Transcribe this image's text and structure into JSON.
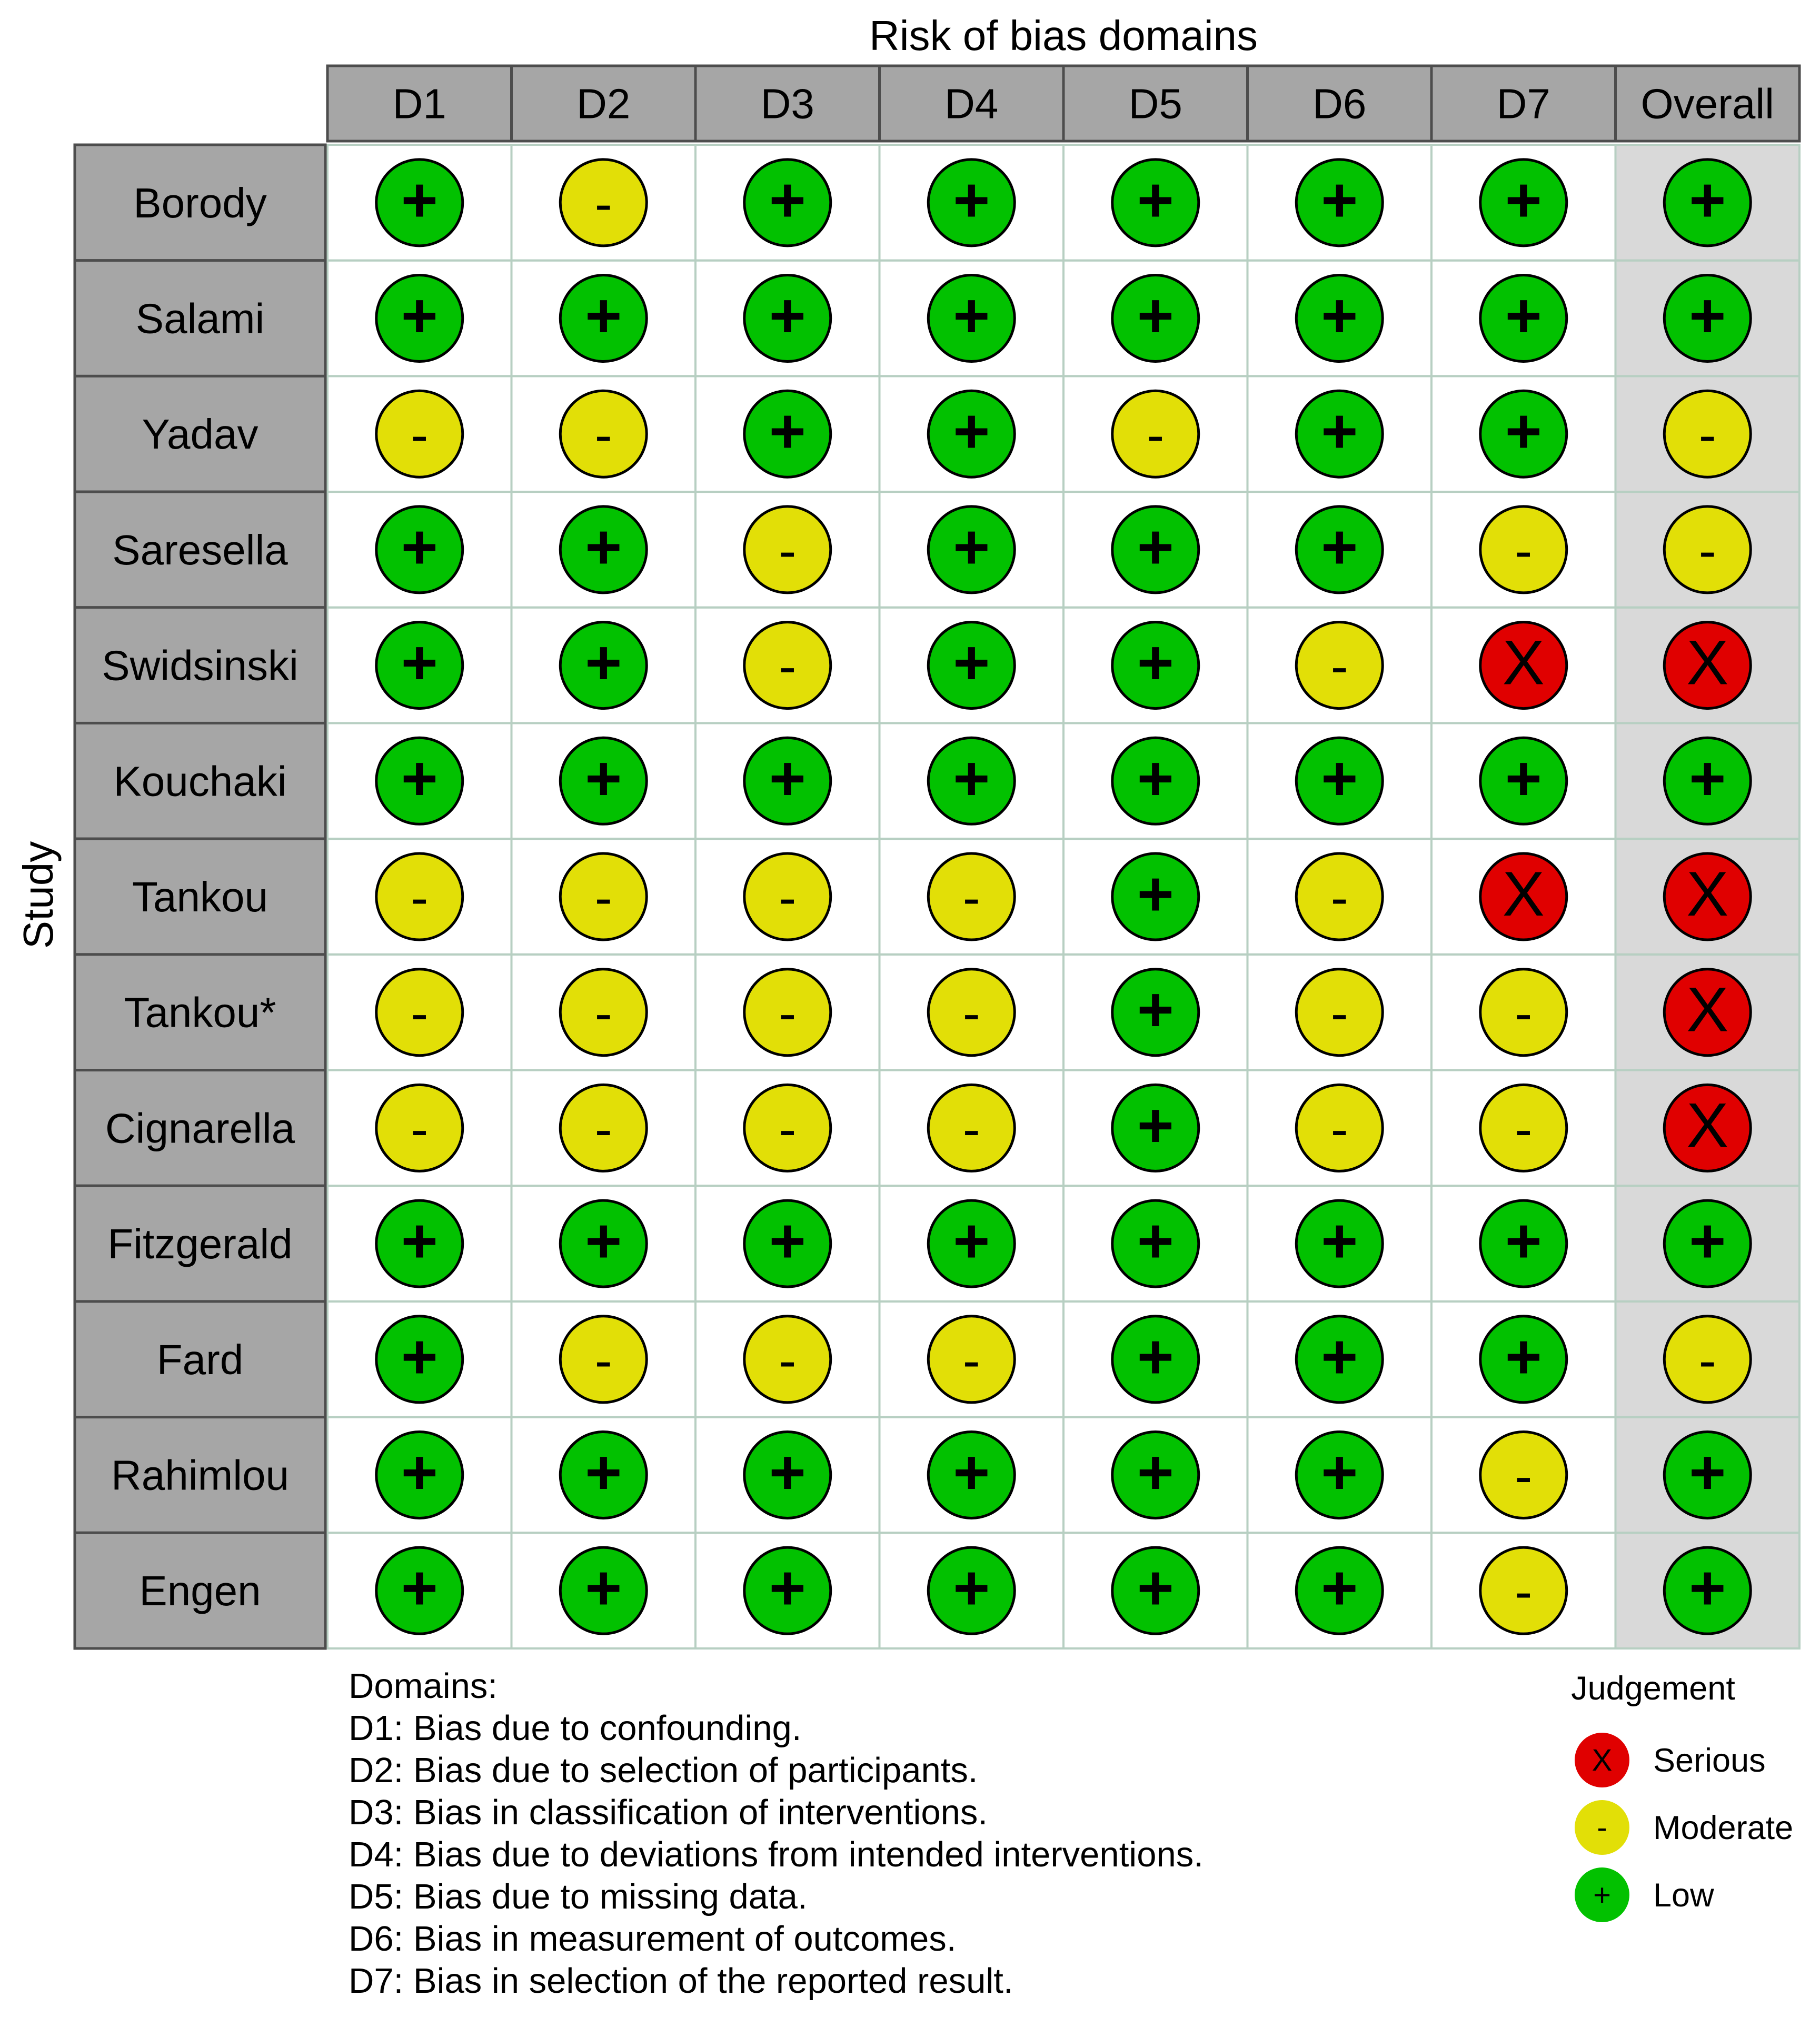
{
  "chart_data": {
    "type": "table",
    "title": "Risk of bias domains",
    "ylabel": "Study",
    "domains": [
      "D1",
      "D2",
      "D3",
      "D4",
      "D5",
      "D6",
      "D7",
      "Overall"
    ],
    "studies": [
      "Borody",
      "Salami",
      "Yadav",
      "Saresella",
      "Swidsinski",
      "Kouchaki",
      "Tankou",
      "Tankou*",
      "Cignarella",
      "Fitzgerald",
      "Fard",
      "Rahimlou",
      "Engen"
    ],
    "judgements": [
      [
        "+",
        "-",
        "+",
        "+",
        "+",
        "+",
        "+",
        "+"
      ],
      [
        "+",
        "+",
        "+",
        "+",
        "+",
        "+",
        "+",
        "+"
      ],
      [
        "-",
        "-",
        "+",
        "+",
        "-",
        "+",
        "+",
        "-"
      ],
      [
        "+",
        "+",
        "-",
        "+",
        "+",
        "+",
        "-",
        "-"
      ],
      [
        "+",
        "+",
        "-",
        "+",
        "+",
        "-",
        "X",
        "X"
      ],
      [
        "+",
        "+",
        "+",
        "+",
        "+",
        "+",
        "+",
        "+"
      ],
      [
        "-",
        "-",
        "-",
        "-",
        "+",
        "-",
        "X",
        "X"
      ],
      [
        "-",
        "-",
        "-",
        "-",
        "+",
        "-",
        "-",
        "X"
      ],
      [
        "-",
        "-",
        "-",
        "-",
        "+",
        "-",
        "-",
        "X"
      ],
      [
        "+",
        "+",
        "+",
        "+",
        "+",
        "+",
        "+",
        "+"
      ],
      [
        "+",
        "-",
        "-",
        "-",
        "+",
        "+",
        "+",
        "-"
      ],
      [
        "+",
        "+",
        "+",
        "+",
        "+",
        "+",
        "-",
        "+"
      ],
      [
        "+",
        "+",
        "+",
        "+",
        "+",
        "+",
        "-",
        "+"
      ]
    ],
    "domain_descriptions_title": "Domains:",
    "domain_descriptions": [
      "D1: Bias due to confounding.",
      "D2: Bias due to selection of participants.",
      "D3: Bias in classification of interventions.",
      "D4: Bias due to deviations from intended interventions.",
      "D5: Bias due to missing data.",
      "D6: Bias in measurement of outcomes.",
      "D7: Bias in selection of the reported result."
    ],
    "legend": {
      "title": "Judgement",
      "placement": "bottom-right",
      "items": [
        {
          "symbol": "X",
          "label": "Serious"
        },
        {
          "symbol": "-",
          "label": "Moderate"
        },
        {
          "symbol": "+",
          "label": "Low"
        }
      ]
    }
  },
  "colors": {
    "serious": "#e00000",
    "moderate": "#e2df07",
    "low": "#02c100",
    "header_fill": "#a6a6a6",
    "overall_fill": "#d9d9d9",
    "border": "#4d4d4d",
    "cell_border": "#b7cfc2"
  }
}
